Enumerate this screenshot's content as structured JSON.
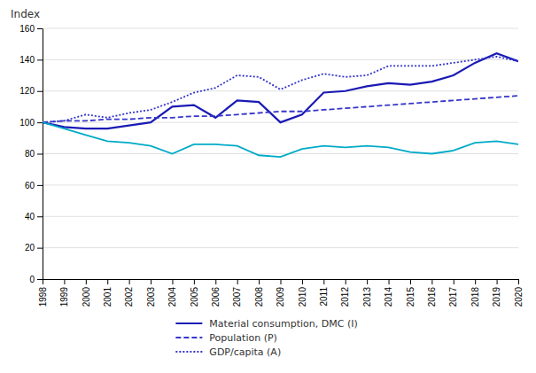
{
  "chart_data": {
    "type": "line",
    "y_label": "Index",
    "x": [
      1998,
      1999,
      2000,
      2001,
      2002,
      2003,
      2004,
      2005,
      2006,
      2007,
      2008,
      2009,
      2010,
      2011,
      2012,
      2013,
      2014,
      2015,
      2016,
      2017,
      2018,
      2019,
      2020
    ],
    "xlim": [
      1998,
      2020
    ],
    "xticks": [
      1998,
      1999,
      2000,
      2001,
      2002,
      2003,
      2004,
      2005,
      2006,
      2007,
      2008,
      2009,
      2010,
      2011,
      2012,
      2013,
      2014,
      2015,
      2016,
      2017,
      2018,
      2019,
      2020
    ],
    "ylim": [
      0,
      160
    ],
    "yticks": [
      0,
      20,
      40,
      60,
      80,
      100,
      120,
      140,
      160
    ],
    "grid": true,
    "legend": "bottom",
    "series": [
      {
        "name": "Material consumption, DMC (I)",
        "color": "#1a1ab5",
        "line_style": "solid",
        "values": [
          100,
          97,
          96,
          96,
          98,
          100,
          110,
          111,
          103,
          114,
          113,
          100,
          105,
          119,
          120,
          123,
          125,
          124,
          126,
          130,
          138,
          144,
          139
        ]
      },
      {
        "name": "Population (P)",
        "color": "#3535cc",
        "line_style": "dashed",
        "values": [
          100,
          101,
          101,
          102,
          102,
          103,
          103,
          104,
          104,
          105,
          106,
          107,
          107,
          108,
          109,
          110,
          111,
          112,
          113,
          114,
          115,
          116,
          117
        ]
      },
      {
        "name": "GDP/capita (A)",
        "color": "#3535cc",
        "line_style": "dotted",
        "values": [
          100,
          101,
          105,
          103,
          106,
          108,
          113,
          119,
          122,
          130,
          129,
          121,
          127,
          131,
          129,
          130,
          136,
          136,
          136,
          138,
          140,
          142,
          139
        ]
      },
      {
        "color": "#00aac8",
        "line_style": "solid",
        "values": [
          100,
          96,
          92,
          88,
          87,
          85,
          80,
          86,
          86,
          85,
          79,
          78,
          83,
          85,
          84,
          85,
          84,
          81,
          80,
          82,
          87,
          88,
          86
        ]
      }
    ]
  }
}
